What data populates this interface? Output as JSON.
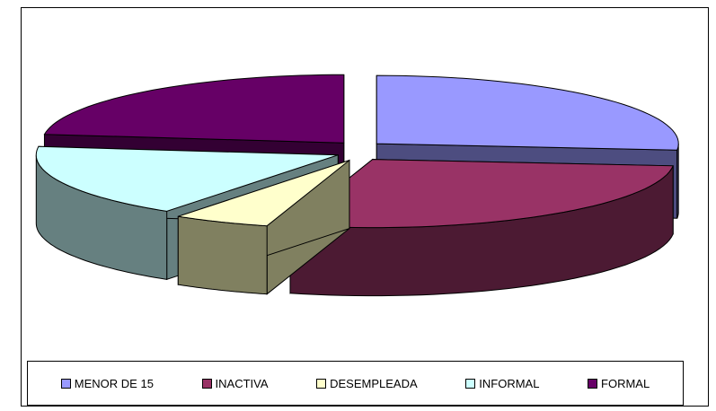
{
  "chart_data": {
    "type": "pie",
    "style": "3d-exploded",
    "categories": [
      "MENOR DE 15",
      "INACTIVA",
      "DESEMPLEADA",
      "INFORMAL",
      "FORMAL"
    ],
    "values": [
      26.5,
      27.9,
      5.2,
      17.4,
      23.0
    ],
    "colors": [
      "#9999FF",
      "#993366",
      "#FFFFCC",
      "#CCFFFF",
      "#660066"
    ],
    "side_colors": [
      "#4D4D80",
      "#4C1A33",
      "#808060",
      "#668080",
      "#330033"
    ],
    "legend_position": "bottom"
  }
}
